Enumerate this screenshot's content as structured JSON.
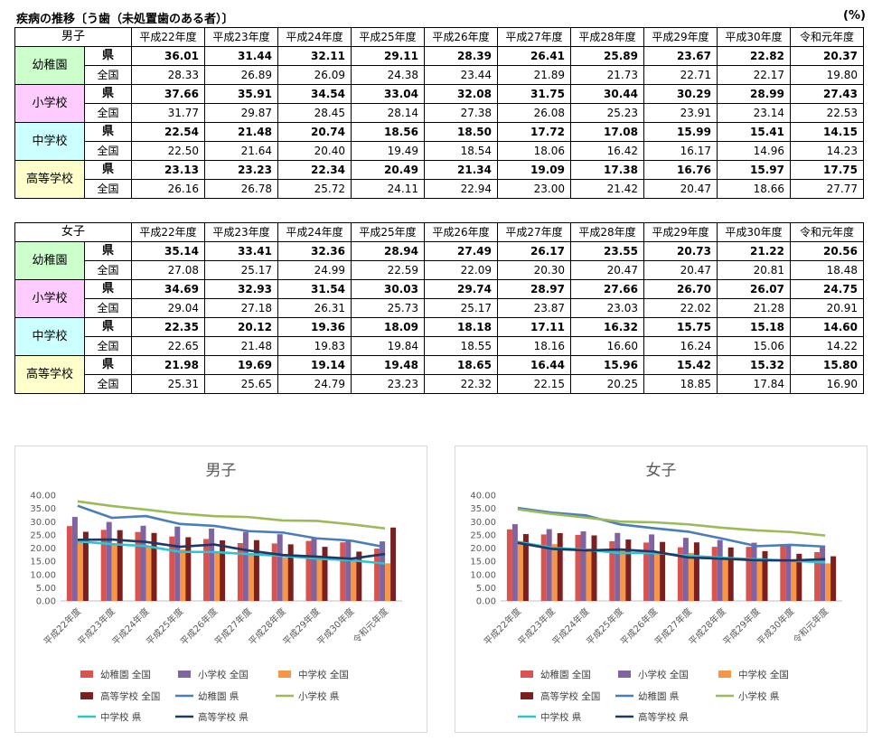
{
  "page": {
    "title": "疾病の推移〔う歯（未処置歯のある者）〕",
    "unit": "(%)"
  },
  "years": [
    "平成22年度",
    "平成23年度",
    "平成24年度",
    "平成25年度",
    "平成26年度",
    "平成27年度",
    "平成28年度",
    "平成29年度",
    "平成30年度",
    "令和元年度"
  ],
  "row_labels": {
    "ken": "県",
    "zenkoku": "全国"
  },
  "tables": [
    {
      "group": "男子",
      "categories": [
        {
          "name": "幼稚園",
          "ken": [
            "36.01",
            "31.44",
            "32.11",
            "29.11",
            "28.39",
            "26.41",
            "25.89",
            "23.67",
            "22.82",
            "20.37"
          ],
          "zenkoku": [
            "28.33",
            "26.89",
            "26.09",
            "24.38",
            "23.44",
            "21.89",
            "21.73",
            "22.71",
            "22.17",
            "19.80"
          ]
        },
        {
          "name": "小学校",
          "ken": [
            "37.66",
            "35.91",
            "34.54",
            "33.04",
            "32.08",
            "31.75",
            "30.44",
            "30.29",
            "28.99",
            "27.43"
          ],
          "zenkoku": [
            "31.77",
            "29.87",
            "28.45",
            "28.14",
            "27.38",
            "26.08",
            "25.23",
            "23.91",
            "23.14",
            "22.53"
          ]
        },
        {
          "name": "中学校",
          "ken": [
            "22.54",
            "21.48",
            "20.74",
            "18.56",
            "18.50",
            "17.72",
            "17.08",
            "15.99",
            "15.41",
            "14.15"
          ],
          "zenkoku": [
            "22.50",
            "21.64",
            "20.40",
            "19.49",
            "18.54",
            "18.06",
            "16.42",
            "16.17",
            "14.96",
            "14.23"
          ]
        },
        {
          "name": "高等学校",
          "ken": [
            "23.13",
            "23.23",
            "22.34",
            "20.49",
            "21.34",
            "19.09",
            "17.38",
            "16.76",
            "15.97",
            "17.75"
          ],
          "zenkoku": [
            "26.16",
            "26.78",
            "25.72",
            "24.11",
            "22.94",
            "23.00",
            "21.42",
            "20.47",
            "18.66",
            "27.77"
          ]
        }
      ]
    },
    {
      "group": "女子",
      "categories": [
        {
          "name": "幼稚園",
          "ken": [
            "35.14",
            "33.41",
            "32.36",
            "28.94",
            "27.49",
            "26.17",
            "23.55",
            "20.73",
            "21.22",
            "20.56"
          ],
          "zenkoku": [
            "27.08",
            "25.17",
            "24.99",
            "22.59",
            "22.09",
            "20.30",
            "20.47",
            "20.47",
            "20.81",
            "18.48"
          ]
        },
        {
          "name": "小学校",
          "ken": [
            "34.69",
            "32.93",
            "31.54",
            "30.03",
            "29.74",
            "28.97",
            "27.66",
            "26.70",
            "26.07",
            "24.75"
          ],
          "zenkoku": [
            "29.04",
            "27.18",
            "26.31",
            "25.73",
            "25.17",
            "23.87",
            "23.03",
            "22.02",
            "21.28",
            "20.91"
          ]
        },
        {
          "name": "中学校",
          "ken": [
            "22.35",
            "20.12",
            "19.36",
            "18.09",
            "18.18",
            "17.11",
            "16.32",
            "15.75",
            "15.18",
            "14.60"
          ],
          "zenkoku": [
            "22.65",
            "21.48",
            "19.83",
            "19.84",
            "18.55",
            "18.16",
            "16.60",
            "16.24",
            "15.06",
            "14.22"
          ]
        },
        {
          "name": "高等学校",
          "ken": [
            "21.98",
            "19.69",
            "19.14",
            "19.48",
            "18.65",
            "16.44",
            "15.96",
            "15.42",
            "15.32",
            "15.80"
          ],
          "zenkoku": [
            "25.31",
            "25.65",
            "24.79",
            "23.23",
            "22.32",
            "22.15",
            "20.25",
            "18.85",
            "17.84",
            "16.90"
          ]
        }
      ]
    }
  ],
  "chart_data": [
    {
      "type": "bar",
      "title": "男子",
      "categories": [
        "平成22年度",
        "平成23年度",
        "平成24年度",
        "平成25年度",
        "平成26年度",
        "平成27年度",
        "平成28年度",
        "平成29年度",
        "平成30年度",
        "令和元年度"
      ],
      "ylim": [
        0,
        40
      ],
      "yticks": [
        "0.00",
        "5.00",
        "10.00",
        "15.00",
        "20.00",
        "25.00",
        "30.00",
        "35.00",
        "40.00"
      ],
      "legend_position": "bottom",
      "bar_series": [
        {
          "name": "幼稚園 全国",
          "color": "#d9534f",
          "values": [
            28.33,
            26.89,
            26.09,
            24.38,
            23.44,
            21.89,
            21.73,
            22.71,
            22.17,
            19.8
          ]
        },
        {
          "name": "小学校 全国",
          "color": "#8064a2",
          "values": [
            31.77,
            29.87,
            28.45,
            28.14,
            27.38,
            26.08,
            25.23,
            23.91,
            23.14,
            22.53
          ]
        },
        {
          "name": "中学校 全国",
          "color": "#f79646",
          "values": [
            22.5,
            21.64,
            20.4,
            19.49,
            18.54,
            18.06,
            16.42,
            16.17,
            14.96,
            14.23
          ]
        },
        {
          "name": "高等学校 全国",
          "color": "#7b1f1f",
          "values": [
            26.16,
            26.78,
            25.72,
            24.11,
            22.94,
            23.0,
            21.42,
            20.47,
            18.66,
            27.77
          ]
        }
      ],
      "line_series": [
        {
          "name": "幼稚園 県",
          "color": "#4a7ebb",
          "values": [
            36.01,
            31.44,
            32.11,
            29.11,
            28.39,
            26.41,
            25.89,
            23.67,
            22.82,
            20.37
          ]
        },
        {
          "name": "小学校 県",
          "color": "#9bbb59",
          "values": [
            37.66,
            35.91,
            34.54,
            33.04,
            32.08,
            31.75,
            30.44,
            30.29,
            28.99,
            27.43
          ]
        },
        {
          "name": "中学校 県",
          "color": "#2ec4cf",
          "values": [
            22.54,
            21.48,
            20.74,
            18.56,
            18.5,
            17.72,
            17.08,
            15.99,
            15.41,
            14.15
          ]
        },
        {
          "name": "高等学校 県",
          "color": "#1f3864",
          "values": [
            23.13,
            23.23,
            22.34,
            20.49,
            21.34,
            19.09,
            17.38,
            16.76,
            15.97,
            17.75
          ]
        }
      ]
    },
    {
      "type": "bar",
      "title": "女子",
      "categories": [
        "平成22年度",
        "平成23年度",
        "平成24年度",
        "平成25年度",
        "平成26年度",
        "平成27年度",
        "平成28年度",
        "平成29年度",
        "平成30年度",
        "令和元年度"
      ],
      "ylim": [
        0,
        40
      ],
      "yticks": [
        "0.00",
        "5.00",
        "10.00",
        "15.00",
        "20.00",
        "25.00",
        "30.00",
        "35.00",
        "40.00"
      ],
      "legend_position": "bottom",
      "bar_series": [
        {
          "name": "幼稚園 全国",
          "color": "#d9534f",
          "values": [
            27.08,
            25.17,
            24.99,
            22.59,
            22.09,
            20.3,
            20.47,
            20.47,
            20.81,
            18.48
          ]
        },
        {
          "name": "小学校 全国",
          "color": "#8064a2",
          "values": [
            29.04,
            27.18,
            26.31,
            25.73,
            25.17,
            23.87,
            23.03,
            22.02,
            21.28,
            20.91
          ]
        },
        {
          "name": "中学校 全国",
          "color": "#f79646",
          "values": [
            22.65,
            21.48,
            19.83,
            19.84,
            18.55,
            18.16,
            16.6,
            16.24,
            15.06,
            14.22
          ]
        },
        {
          "name": "高等学校 全国",
          "color": "#7b1f1f",
          "values": [
            25.31,
            25.65,
            24.79,
            23.23,
            22.32,
            22.15,
            20.25,
            18.85,
            17.84,
            16.9
          ]
        }
      ],
      "line_series": [
        {
          "name": "幼稚園 県",
          "color": "#4a7ebb",
          "values": [
            35.14,
            33.41,
            32.36,
            28.94,
            27.49,
            26.17,
            23.55,
            20.73,
            21.22,
            20.56
          ]
        },
        {
          "name": "小学校 県",
          "color": "#9bbb59",
          "values": [
            34.69,
            32.93,
            31.54,
            30.03,
            29.74,
            28.97,
            27.66,
            26.7,
            26.07,
            24.75
          ]
        },
        {
          "name": "中学校 県",
          "color": "#2ec4cf",
          "values": [
            22.35,
            20.12,
            19.36,
            18.09,
            18.18,
            17.11,
            16.32,
            15.75,
            15.18,
            14.6
          ]
        },
        {
          "name": "高等学校 県",
          "color": "#1f3864",
          "values": [
            21.98,
            19.69,
            19.14,
            19.48,
            18.65,
            16.44,
            15.96,
            15.42,
            15.32,
            15.8
          ]
        }
      ]
    }
  ]
}
